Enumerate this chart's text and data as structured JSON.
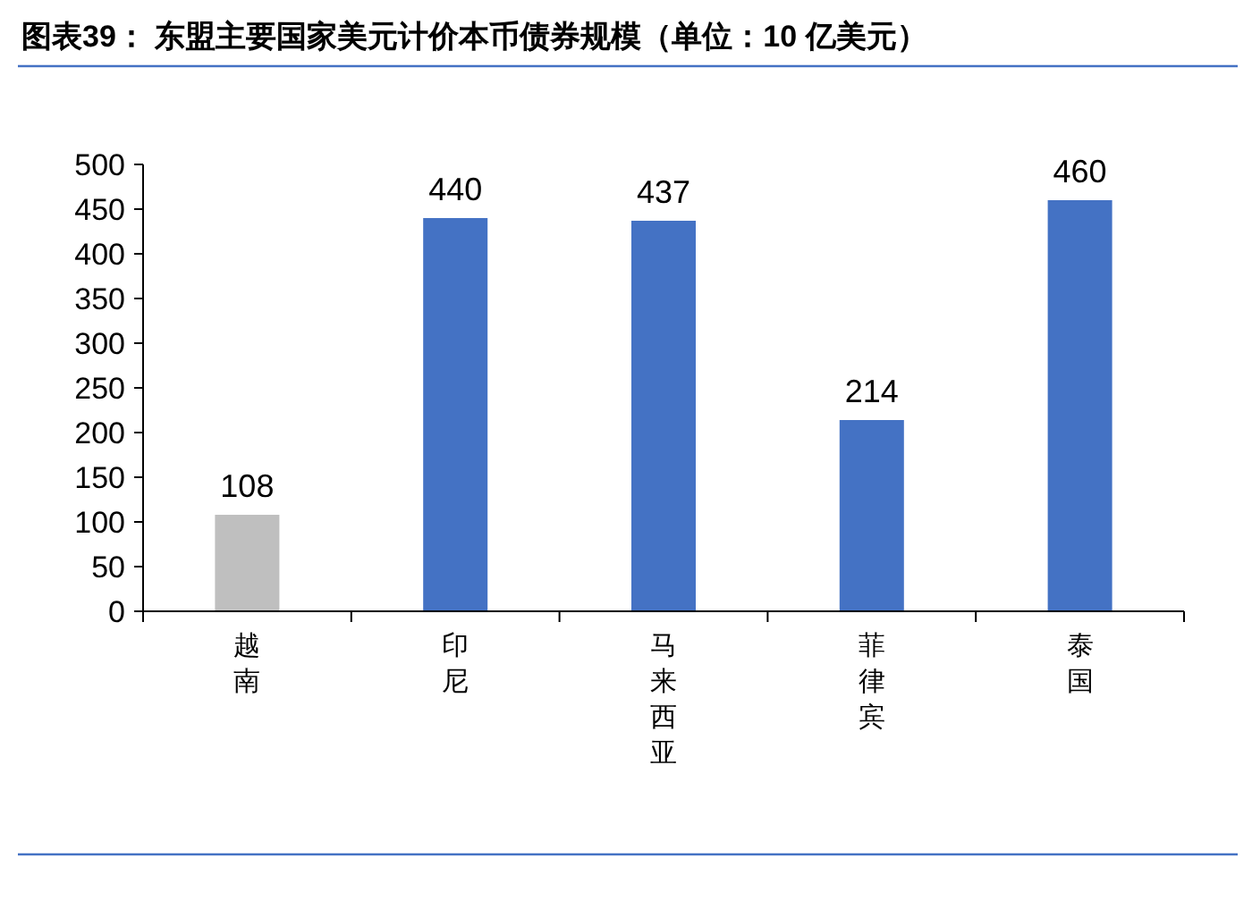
{
  "chart_data": {
    "type": "bar",
    "title": "图表39： 东盟主要国家美元计价本币债券规模（单位：10 亿美元）",
    "categories": [
      "越南",
      "印尼",
      "马来西亚",
      "菲律宾",
      "泰国"
    ],
    "values": [
      108,
      440,
      437,
      214,
      460
    ],
    "colors": [
      "#bfbfbf",
      "#4472c4",
      "#4472c4",
      "#4472c4",
      "#4472c4"
    ],
    "ylim": [
      0,
      500
    ],
    "yticks": [
      0,
      50,
      100,
      150,
      200,
      250,
      300,
      350,
      400,
      450,
      500
    ],
    "data_labels": true
  }
}
